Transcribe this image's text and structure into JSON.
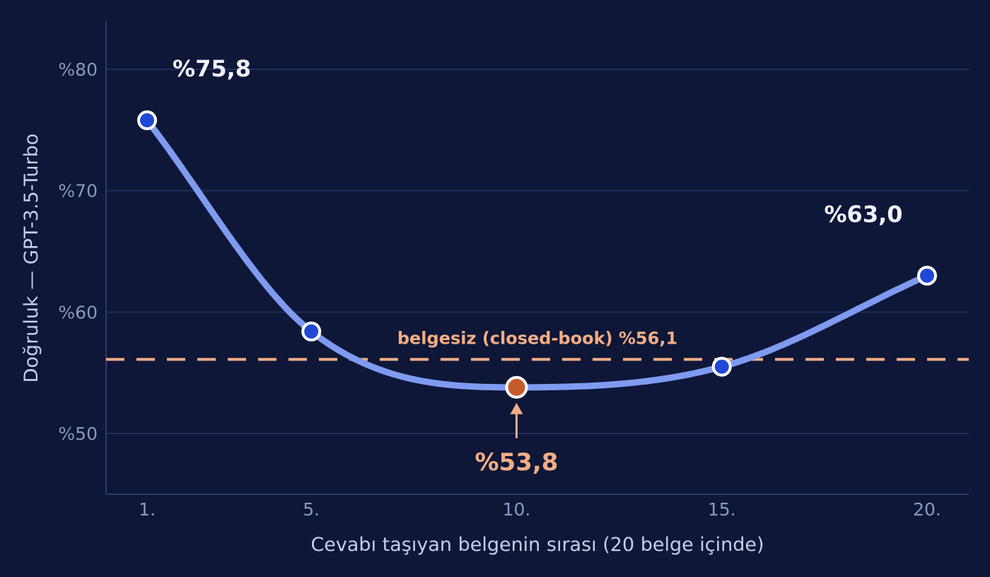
{
  "colors": {
    "background": "#0e1737",
    "grid": "#222d57",
    "axis": "#2f3a6b",
    "curve": "#7e9bf0",
    "point_fill": "#1f49d4",
    "point_min_fill": "#c65b2a",
    "point_stroke": "#ffffff",
    "baseline": "#f2ad86",
    "callout": "#eef2ff",
    "tick_text": "#8c97bf",
    "axis_title": "#c6cdea"
  },
  "chart_data": {
    "type": "line",
    "xlabel": "Cevabı taşıyan belgenin sırası (20 belge içinde)",
    "ylabel": "Doğruluk — GPT-3.5-Turbo",
    "xlim": [
      0,
      21
    ],
    "ylim": [
      45,
      84
    ],
    "grid": true,
    "x_ticks": [
      1,
      5,
      10,
      15,
      20
    ],
    "x_tick_labels": [
      "1.",
      "5.",
      "10.",
      "15.",
      "20."
    ],
    "y_ticks": [
      50,
      60,
      70,
      80
    ],
    "y_tick_labels": [
      "%50",
      "%60",
      "%70",
      "%80"
    ],
    "series": [
      {
        "x": [
          1,
          5,
          10,
          15,
          20
        ],
        "values": [
          75.8,
          58.4,
          53.8,
          55.5,
          63.0
        ]
      }
    ],
    "point_labels": [
      "%75,8",
      "%53,8",
      "%63,0"
    ],
    "min_point_index": 2,
    "baseline": {
      "value": 56.1,
      "label": "belgesiz (closed-book)  %56,1"
    }
  }
}
